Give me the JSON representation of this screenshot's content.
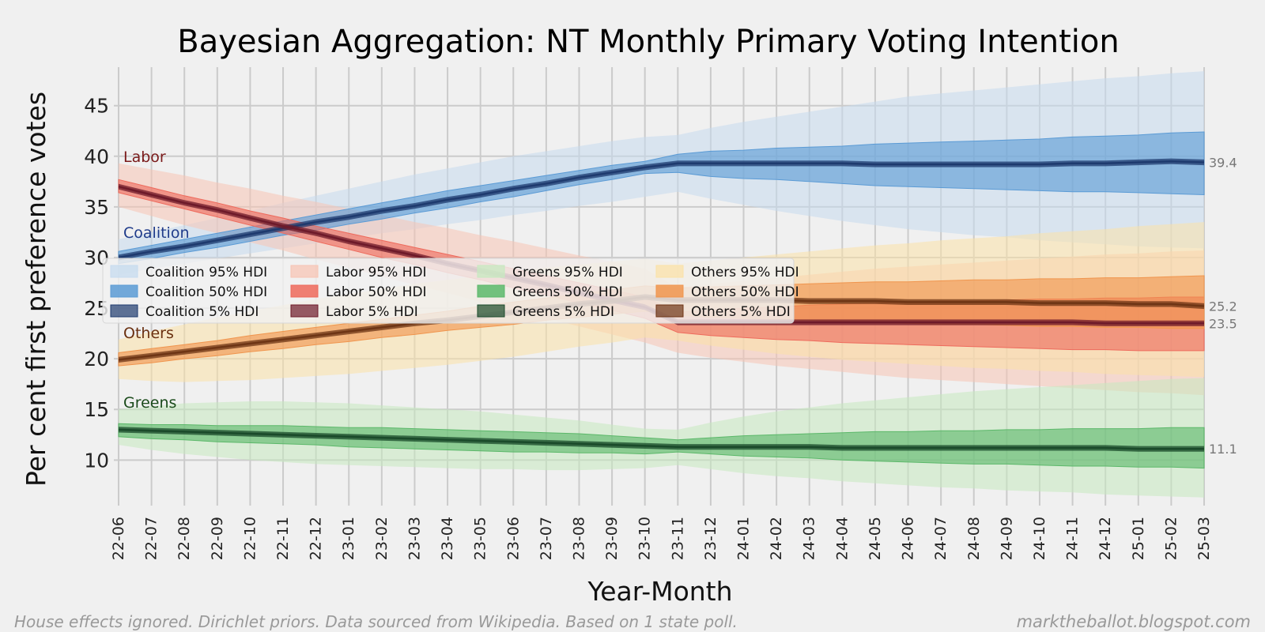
{
  "chart_data": {
    "type": "area",
    "title": "Bayesian Aggregation: NT Monthly Primary Voting Intention",
    "xlabel": "Year-Month",
    "ylabel": "Per cent first preference votes",
    "ylim": [
      5.5,
      48.8
    ],
    "yticks": [
      10,
      15,
      20,
      25,
      30,
      35,
      40,
      45
    ],
    "grid": true,
    "legend_position": "center-left",
    "categories": [
      "22-06",
      "22-07",
      "22-08",
      "22-09",
      "22-10",
      "22-11",
      "22-12",
      "23-01",
      "23-02",
      "23-03",
      "23-04",
      "23-05",
      "23-06",
      "23-07",
      "23-08",
      "23-09",
      "23-10",
      "23-11",
      "23-12",
      "24-01",
      "24-02",
      "24-03",
      "24-04",
      "24-05",
      "24-06",
      "24-07",
      "24-08",
      "24-09",
      "24-10",
      "24-11",
      "24-12",
      "25-01",
      "25-02",
      "25-03"
    ],
    "series": [
      {
        "name": "Coalition",
        "label_color": "#1f3b8a",
        "color_95": "#c6dbef",
        "color_50": "#5b9bd5",
        "color_5": "#1e3a6e",
        "median": [
          30.0,
          30.6,
          31.1,
          31.7,
          32.3,
          32.9,
          33.5,
          34.0,
          34.6,
          35.1,
          35.7,
          36.2,
          36.8,
          37.3,
          37.9,
          38.4,
          38.9,
          39.3,
          39.3,
          39.3,
          39.3,
          39.3,
          39.3,
          39.2,
          39.2,
          39.2,
          39.2,
          39.2,
          39.2,
          39.3,
          39.3,
          39.4,
          39.5,
          39.4
        ],
        "hdi50_low": [
          29.4,
          29.9,
          30.5,
          31.0,
          31.6,
          32.2,
          32.7,
          33.3,
          33.8,
          34.4,
          34.9,
          35.5,
          36.0,
          36.6,
          37.2,
          37.7,
          38.3,
          38.4,
          38.0,
          37.8,
          37.7,
          37.5,
          37.3,
          37.1,
          37.0,
          36.9,
          36.8,
          36.7,
          36.6,
          36.5,
          36.5,
          36.4,
          36.3,
          36.2
        ],
        "hdi50_high": [
          30.6,
          31.2,
          31.8,
          32.4,
          33.0,
          33.6,
          34.2,
          34.8,
          35.4,
          36.0,
          36.6,
          37.1,
          37.6,
          38.1,
          38.6,
          39.1,
          39.5,
          40.2,
          40.5,
          40.6,
          40.8,
          40.9,
          41.0,
          41.2,
          41.3,
          41.4,
          41.5,
          41.6,
          41.7,
          41.9,
          42.0,
          42.1,
          42.3,
          42.4
        ],
        "hdi95_low": [
          28.3,
          28.9,
          29.4,
          29.9,
          30.4,
          30.9,
          31.4,
          31.9,
          32.4,
          32.8,
          33.3,
          33.7,
          34.2,
          34.6,
          35.1,
          35.5,
          36.0,
          36.5,
          35.8,
          35.2,
          34.6,
          34.1,
          33.6,
          33.2,
          32.8,
          32.5,
          32.2,
          32.0,
          31.7,
          31.5,
          31.3,
          31.1,
          31.0,
          30.9
        ],
        "hdi95_high": [
          31.8,
          32.5,
          33.2,
          33.9,
          34.6,
          35.4,
          36.1,
          36.8,
          37.5,
          38.2,
          38.8,
          39.4,
          40.0,
          40.5,
          41.0,
          41.5,
          41.9,
          42.1,
          42.8,
          43.4,
          43.9,
          44.4,
          44.9,
          45.4,
          45.9,
          46.2,
          46.5,
          46.8,
          47.1,
          47.4,
          47.7,
          47.9,
          48.2,
          48.4
        ]
      },
      {
        "name": "Labor",
        "label_color": "#7a1a1a",
        "color_95": "#f7c4b4",
        "color_50": "#ee6a5c",
        "color_5": "#6e1a2a",
        "median": [
          37.0,
          36.2,
          35.4,
          34.7,
          33.9,
          33.1,
          32.4,
          31.6,
          30.9,
          30.2,
          29.4,
          28.7,
          28.0,
          27.3,
          26.5,
          25.8,
          25.1,
          23.6,
          23.6,
          23.6,
          23.6,
          23.6,
          23.6,
          23.6,
          23.6,
          23.6,
          23.6,
          23.6,
          23.6,
          23.6,
          23.5,
          23.5,
          23.5,
          23.5
        ],
        "hdi50_low": [
          36.4,
          35.6,
          34.8,
          34.0,
          33.2,
          32.4,
          31.6,
          30.8,
          30.0,
          29.3,
          28.5,
          27.8,
          27.0,
          26.3,
          25.5,
          24.8,
          24.0,
          22.6,
          22.3,
          22.1,
          21.9,
          21.8,
          21.6,
          21.5,
          21.4,
          21.3,
          21.2,
          21.1,
          21.0,
          20.9,
          20.9,
          20.8,
          20.8,
          20.8
        ],
        "hdi50_high": [
          37.7,
          36.9,
          36.1,
          35.4,
          34.6,
          33.9,
          33.1,
          32.4,
          31.7,
          31.0,
          30.3,
          29.6,
          28.9,
          28.2,
          27.5,
          26.8,
          26.1,
          24.6,
          24.8,
          25.0,
          25.1,
          25.3,
          25.4,
          25.5,
          25.6,
          25.7,
          25.7,
          25.8,
          25.9,
          25.9,
          26.0,
          26.0,
          26.1,
          26.1
        ],
        "hdi95_low": [
          35.0,
          34.1,
          33.2,
          32.4,
          31.5,
          30.7,
          29.8,
          29.0,
          28.1,
          27.3,
          26.5,
          25.6,
          24.8,
          24.0,
          23.2,
          22.4,
          21.6,
          20.6,
          20.1,
          19.7,
          19.3,
          19.0,
          18.7,
          18.4,
          18.1,
          17.9,
          17.7,
          17.5,
          17.3,
          17.1,
          16.9,
          16.7,
          16.6,
          16.4
        ],
        "hdi95_high": [
          39.3,
          38.7,
          38.1,
          37.4,
          36.8,
          36.1,
          35.5,
          34.8,
          34.2,
          33.5,
          32.9,
          32.2,
          31.6,
          30.9,
          30.2,
          29.6,
          28.9,
          27.0,
          27.4,
          27.7,
          28.0,
          28.3,
          28.6,
          28.9,
          29.1,
          29.3,
          29.5,
          29.7,
          29.9,
          30.1,
          30.3,
          30.4,
          30.6,
          30.7
        ]
      },
      {
        "name": "Greens",
        "label_color": "#1a4a1a",
        "color_95": "#c7e9c0",
        "color_50": "#5cb86a",
        "color_5": "#1a4a2a",
        "median": [
          13.0,
          12.9,
          12.8,
          12.7,
          12.6,
          12.5,
          12.4,
          12.3,
          12.2,
          12.1,
          12.0,
          11.9,
          11.8,
          11.7,
          11.6,
          11.5,
          11.4,
          11.3,
          11.3,
          11.3,
          11.3,
          11.3,
          11.2,
          11.2,
          11.2,
          11.2,
          11.2,
          11.2,
          11.2,
          11.2,
          11.2,
          11.1,
          11.1,
          11.1
        ],
        "hdi50_low": [
          12.3,
          12.1,
          12.0,
          11.8,
          11.7,
          11.6,
          11.5,
          11.3,
          11.2,
          11.1,
          11.0,
          10.9,
          10.8,
          10.8,
          10.7,
          10.7,
          10.6,
          10.8,
          10.6,
          10.4,
          10.3,
          10.2,
          10.0,
          9.9,
          9.8,
          9.7,
          9.6,
          9.6,
          9.5,
          9.4,
          9.4,
          9.3,
          9.3,
          9.2
        ],
        "hdi50_high": [
          13.6,
          13.5,
          13.5,
          13.4,
          13.4,
          13.4,
          13.3,
          13.2,
          13.2,
          13.1,
          13.0,
          12.9,
          12.8,
          12.7,
          12.6,
          12.4,
          12.2,
          12.0,
          12.2,
          12.4,
          12.5,
          12.6,
          12.7,
          12.8,
          12.8,
          12.9,
          12.9,
          13.0,
          13.0,
          13.1,
          13.1,
          13.1,
          13.2,
          13.2
        ],
        "hdi95_low": [
          11.5,
          11.0,
          10.6,
          10.3,
          10.0,
          9.8,
          9.6,
          9.5,
          9.4,
          9.3,
          9.2,
          9.1,
          9.1,
          9.0,
          9.0,
          9.1,
          9.2,
          9.5,
          9.1,
          8.7,
          8.4,
          8.2,
          7.9,
          7.7,
          7.5,
          7.3,
          7.2,
          7.0,
          6.9,
          6.8,
          6.6,
          6.5,
          6.4,
          6.3
        ],
        "hdi95_high": [
          15.0,
          15.3,
          15.6,
          15.7,
          15.8,
          15.8,
          15.7,
          15.6,
          15.4,
          15.2,
          15.0,
          14.8,
          14.5,
          14.2,
          13.9,
          13.5,
          13.1,
          13.0,
          13.7,
          14.3,
          14.8,
          15.2,
          15.6,
          15.9,
          16.2,
          16.5,
          16.8,
          17.0,
          17.2,
          17.4,
          17.6,
          17.8,
          18.0,
          18.1
        ]
      },
      {
        "name": "Others",
        "label_color": "#6a3010",
        "color_95": "#fbe2a8",
        "color_50": "#f0954e",
        "color_5": "#6e3515",
        "median": [
          19.9,
          20.3,
          20.7,
          21.1,
          21.5,
          21.9,
          22.3,
          22.7,
          23.1,
          23.5,
          23.8,
          24.2,
          24.6,
          25.0,
          25.4,
          25.7,
          26.1,
          25.8,
          25.8,
          25.8,
          25.8,
          25.7,
          25.7,
          25.7,
          25.6,
          25.6,
          25.6,
          25.6,
          25.5,
          25.5,
          25.5,
          25.4,
          25.4,
          25.2
        ],
        "hdi50_low": [
          19.3,
          19.6,
          20.0,
          20.3,
          20.7,
          21.0,
          21.4,
          21.7,
          22.1,
          22.4,
          22.8,
          23.1,
          23.4,
          23.8,
          24.1,
          24.4,
          24.7,
          24.3,
          24.1,
          24.0,
          23.9,
          23.8,
          23.7,
          23.6,
          23.5,
          23.4,
          23.4,
          23.3,
          23.2,
          23.2,
          23.1,
          23.1,
          23.0,
          23.0
        ],
        "hdi50_high": [
          20.6,
          21.0,
          21.4,
          21.8,
          22.3,
          22.7,
          23.1,
          23.5,
          23.9,
          24.3,
          24.7,
          25.2,
          25.6,
          26.0,
          26.4,
          26.8,
          27.2,
          27.0,
          27.1,
          27.2,
          27.3,
          27.4,
          27.5,
          27.6,
          27.6,
          27.7,
          27.8,
          27.8,
          27.9,
          27.9,
          28.0,
          28.0,
          28.1,
          28.2
        ],
        "hdi95_low": [
          18.0,
          17.8,
          17.7,
          17.8,
          17.9,
          18.1,
          18.3,
          18.5,
          18.8,
          19.1,
          19.4,
          19.8,
          20.2,
          20.7,
          21.2,
          21.6,
          22.1,
          21.8,
          21.3,
          20.9,
          20.5,
          20.2,
          19.9,
          19.7,
          19.5,
          19.3,
          19.1,
          19.0,
          18.8,
          18.7,
          18.5,
          18.4,
          18.3,
          18.2
        ],
        "hdi95_high": [
          21.9,
          22.7,
          23.4,
          24.1,
          24.7,
          25.3,
          25.9,
          26.4,
          26.9,
          27.4,
          27.8,
          28.2,
          28.6,
          29.0,
          29.3,
          29.6,
          29.9,
          29.4,
          29.7,
          30.0,
          30.3,
          30.6,
          30.9,
          31.2,
          31.4,
          31.7,
          31.9,
          32.1,
          32.4,
          32.6,
          32.8,
          33.1,
          33.3,
          33.5
        ]
      }
    ],
    "legend": [
      "Coalition 95% HDI",
      "Coalition 50% HDI",
      "Coalition 5% HDI",
      "Labor 95% HDI",
      "Labor 50% HDI",
      "Labor 5% HDI",
      "Greens 95% HDI",
      "Greens 50% HDI",
      "Greens 5% HDI",
      "Others 95% HDI",
      "Others 50% HDI",
      "Others 5% HDI"
    ],
    "end_labels": [
      "39.4",
      "25.2",
      "23.5",
      "11.1"
    ]
  },
  "footer": {
    "left": "House effects ignored. Dirichlet priors. Data sourced from Wikipedia. Based on 1 state poll.",
    "right": "marktheballot.blogspot.com"
  }
}
